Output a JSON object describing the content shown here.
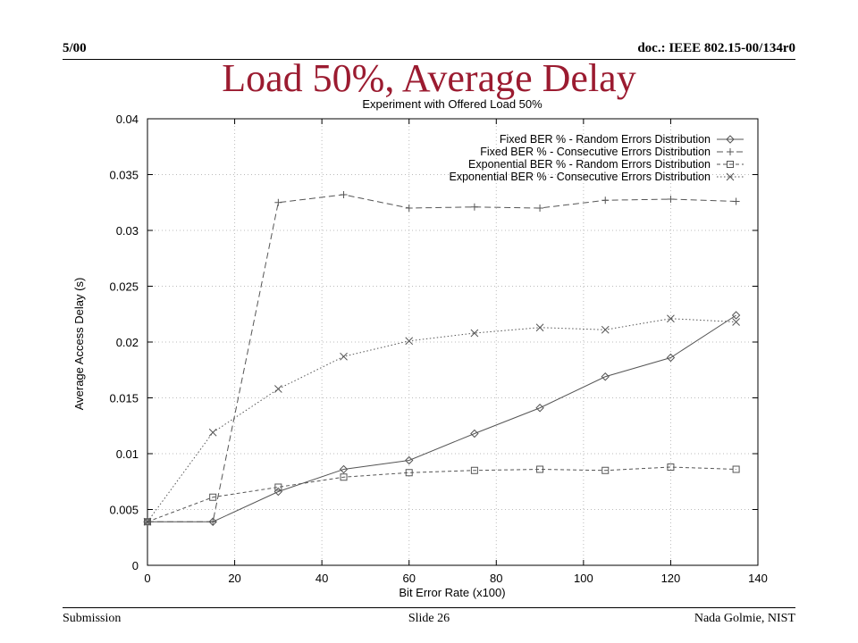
{
  "header": {
    "left": "5/00",
    "right": "doc.: IEEE 802.15-00/134r0"
  },
  "slide_title": "Load 50%, Average Delay",
  "footer": {
    "left": "Submission",
    "center": "Slide 26",
    "right": "Nada Golmie, NIST"
  },
  "colors": {
    "title": "#9b1b30",
    "series": "#555555",
    "grid": "#bbbbbb"
  },
  "chart_data": {
    "type": "line",
    "title": "Experiment with Offered Load 50%",
    "xlabel": "Bit Error Rate (x100)",
    "ylabel": "Average Access Delay (s)",
    "xlim": [
      0,
      140
    ],
    "ylim": [
      0,
      0.04
    ],
    "x_ticks": [
      "0",
      "20",
      "40",
      "60",
      "80",
      "100",
      "120",
      "140"
    ],
    "y_ticks": [
      "0",
      "0.005",
      "0.01",
      "0.015",
      "0.02",
      "0.025",
      "0.03",
      "0.035",
      "0.04"
    ],
    "grid": true,
    "legend_position": "top-right",
    "x": [
      0,
      15,
      30,
      45,
      60,
      75,
      90,
      105,
      120,
      135
    ],
    "series": [
      {
        "name": "Fixed BER % - Random Errors Distribution",
        "marker": "diamond",
        "dash": "none",
        "values": [
          0.0039,
          0.0039,
          0.0066,
          0.0086,
          0.0094,
          0.0118,
          0.0141,
          0.0169,
          0.0186,
          0.0224
        ]
      },
      {
        "name": "Fixed BER % - Consecutive Errors Distribution",
        "marker": "plus",
        "dash": "long",
        "values": [
          0.0039,
          0.0039,
          0.0325,
          0.0332,
          0.032,
          0.0321,
          0.032,
          0.0327,
          0.0328,
          0.0326
        ]
      },
      {
        "name": "Exponential BER % - Random Errors Distribution",
        "marker": "square",
        "dash": "short",
        "values": [
          0.0039,
          0.0061,
          0.007,
          0.0079,
          0.0083,
          0.0085,
          0.0086,
          0.0085,
          0.0088,
          0.0086
        ]
      },
      {
        "name": "Exponential BER % - Consecutive Errors Distribution",
        "marker": "cross",
        "dash": "dot",
        "values": [
          0.0039,
          0.0119,
          0.0158,
          0.0187,
          0.0201,
          0.0208,
          0.0213,
          0.0211,
          0.0221,
          0.0218
        ]
      }
    ]
  }
}
